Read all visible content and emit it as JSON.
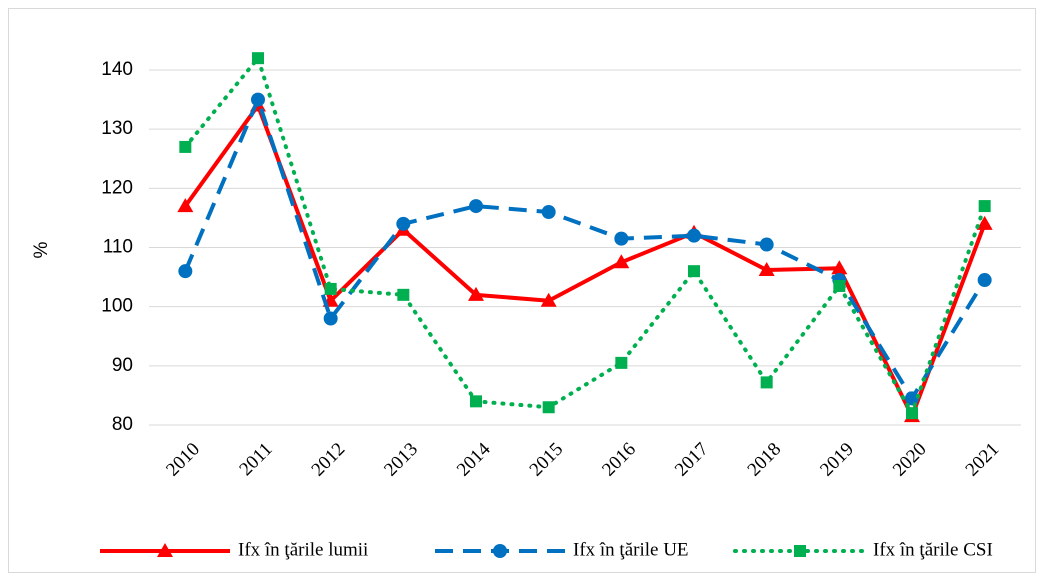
{
  "chart_data": {
    "type": "line",
    "y_label": "%",
    "categories": [
      "2010",
      "2011",
      "2012",
      "2013",
      "2014",
      "2015",
      "2016",
      "2017",
      "2018",
      "2019",
      "2020",
      "2021"
    ],
    "series": [
      {
        "name": "Ifx în ţările lumii",
        "color": "#ff0000",
        "line_style": "solid",
        "marker": "triangle",
        "values": [
          117,
          134,
          101,
          113,
          102,
          101,
          107.5,
          112.5,
          106.2,
          106.5,
          81.5,
          114
        ]
      },
      {
        "name": "Ifx în ţările UE",
        "color": "#0070c0",
        "line_style": "dashed",
        "marker": "circle",
        "values": [
          106,
          135,
          98,
          114,
          117,
          116,
          111.5,
          112,
          110.5,
          104.5,
          84.5,
          104.5
        ]
      },
      {
        "name": "Ifx în ţările CSI",
        "color": "#00b050",
        "line_style": "dotted",
        "marker": "square",
        "values": [
          127,
          142,
          103,
          102,
          84,
          83,
          90.5,
          106,
          87.2,
          103.5,
          82,
          117
        ]
      }
    ],
    "ylim": [
      80,
      140
    ],
    "yticks": [
      80,
      90,
      100,
      110,
      120,
      130,
      140
    ],
    "grid": true,
    "legend": "bottom"
  }
}
